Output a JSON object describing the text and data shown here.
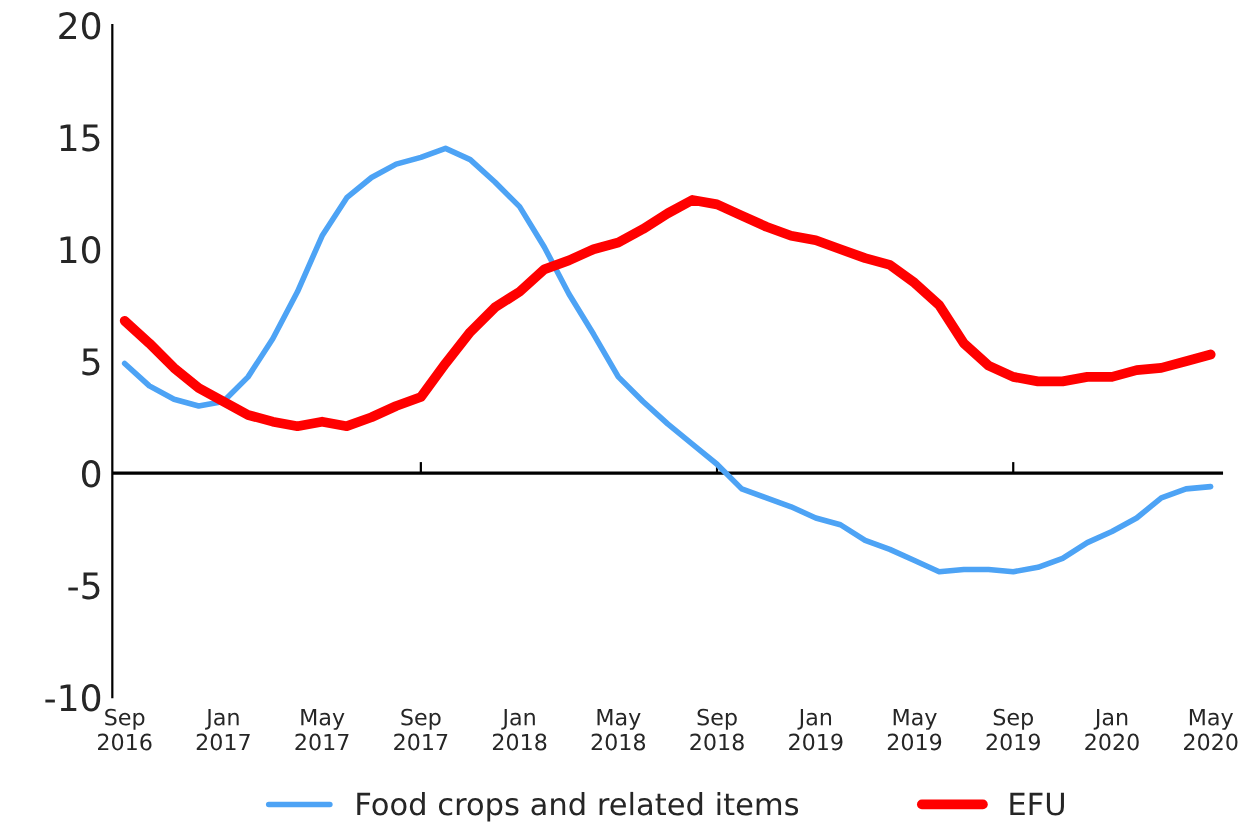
{
  "chart_data": {
    "type": "line",
    "categories": [
      "Sep\n2016",
      null,
      null,
      null,
      "Jan\n2017",
      null,
      null,
      null,
      "May\n2017",
      null,
      null,
      null,
      "Sep\n2017",
      null,
      null,
      null,
      "Jan\n2018",
      null,
      null,
      null,
      "May\n2018",
      null,
      null,
      null,
      "Sep\n2018",
      null,
      null,
      null,
      "Jan\n2019",
      null,
      null,
      null,
      "May\n2019",
      null,
      null,
      null,
      "Sep\n2019",
      null,
      null,
      null,
      "Jan\n2020",
      null,
      null,
      null,
      "May\n2020"
    ],
    "series": [
      {
        "name": "Food crops and related items",
        "color": "#4da3f5",
        "values": [
          4.9,
          3.9,
          3.3,
          3.0,
          3.2,
          4.3,
          6.0,
          8.1,
          10.6,
          12.3,
          13.2,
          13.8,
          14.1,
          14.5,
          14.0,
          13.0,
          11.9,
          10.1,
          8.0,
          6.2,
          4.3,
          3.2,
          2.2,
          1.3,
          0.4,
          -0.7,
          -1.1,
          -1.5,
          -2.0,
          -2.3,
          -3.0,
          -3.4,
          -3.9,
          -4.4,
          -4.3,
          -4.3,
          -4.4,
          -4.2,
          -3.8,
          -3.1,
          -2.6,
          -2.0,
          -1.1,
          -0.7,
          -0.6
        ]
      },
      {
        "name": "EFU",
        "color": "#ff0000",
        "values": [
          6.8,
          5.8,
          4.7,
          3.8,
          3.2,
          2.6,
          2.3,
          2.1,
          2.3,
          2.1,
          2.5,
          3.0,
          3.4,
          4.9,
          6.3,
          7.4,
          8.1,
          9.1,
          9.5,
          10.0,
          10.3,
          10.9,
          11.6,
          12.2,
          12.0,
          11.5,
          11.0,
          10.6,
          10.4,
          10.0,
          9.6,
          9.3,
          8.5,
          7.5,
          5.8,
          4.8,
          4.3,
          4.1,
          4.1,
          4.3,
          4.3,
          4.6,
          4.7,
          5.0,
          5.3
        ]
      }
    ],
    "ylim": [
      -10,
      20
    ],
    "yticks": [
      -10,
      -5,
      0,
      5,
      10,
      15,
      20
    ],
    "ref_lines": [
      {
        "axis": "y",
        "value": 0,
        "color": "#000000",
        "line_style": "solid"
      }
    ],
    "grid": false,
    "legend": "bottom",
    "marker": "none",
    "line_style": "solid"
  }
}
